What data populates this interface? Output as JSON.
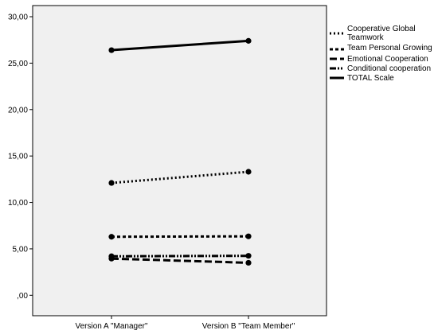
{
  "chart_data": {
    "type": "line",
    "title": "",
    "xlabel": "",
    "ylabel": "",
    "categories": [
      "Version A \"Manager\"",
      "Version B \"Team Member\""
    ],
    "ylim": [
      -2.2,
      31.2
    ],
    "yticks": [
      0,
      5,
      10,
      15,
      20,
      25,
      30
    ],
    "ytick_labels": [
      ",00",
      "5,00",
      "10,00",
      "15,00",
      "20,00",
      "25,00",
      "30,00"
    ],
    "grid": false,
    "legend_position": "right",
    "plot_background": "#f0f0f0",
    "series": [
      {
        "name": "Cooperative Global Teamwork",
        "values": [
          12.1,
          13.3
        ],
        "style": "dotted"
      },
      {
        "name": "Team Personal Growing",
        "values": [
          6.3,
          6.35
        ],
        "style": "short-dash"
      },
      {
        "name": "Emotional Cooperation",
        "values": [
          3.95,
          3.5
        ],
        "style": "long-dash"
      },
      {
        "name": "Conditional cooperation",
        "values": [
          4.2,
          4.25
        ],
        "style": "dash-dot-dot"
      },
      {
        "name": "TOTAL Scale",
        "values": [
          26.4,
          27.4
        ],
        "style": "solid"
      }
    ]
  }
}
